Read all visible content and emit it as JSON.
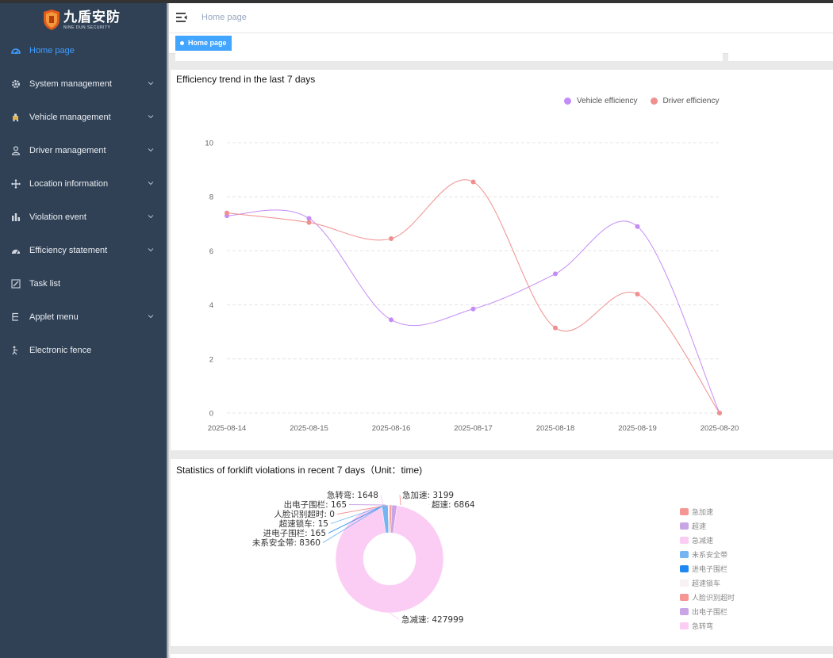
{
  "app": {
    "logo_title": "九盾安防",
    "logo_subtitle": "NINE DUN SECURITY"
  },
  "sidebar": {
    "items": [
      {
        "label": "Home page",
        "icon": "dashboard-icon",
        "active": true,
        "has_children": false
      },
      {
        "label": "System management",
        "icon": "gear-icon",
        "active": false,
        "has_children": true
      },
      {
        "label": "Vehicle management",
        "icon": "vehicle-icon",
        "active": false,
        "has_children": true
      },
      {
        "label": "Driver management",
        "icon": "user-icon",
        "active": false,
        "has_children": true
      },
      {
        "label": "Location information",
        "icon": "move-icon",
        "active": false,
        "has_children": true
      },
      {
        "label": "Violation event",
        "icon": "bar-chart-icon",
        "active": false,
        "has_children": true
      },
      {
        "label": "Efficiency statement",
        "icon": "gauge-icon",
        "active": false,
        "has_children": true
      },
      {
        "label": "Task list",
        "icon": "edit-icon",
        "active": false,
        "has_children": false
      },
      {
        "label": "Applet menu",
        "icon": "tree-icon",
        "active": false,
        "has_children": true
      },
      {
        "label": "Electronic fence",
        "icon": "fence-icon",
        "active": false,
        "has_children": false
      }
    ],
    "bg_color": "#304156",
    "active_color": "#409eff"
  },
  "header": {
    "breadcrumb": "Home page"
  },
  "tags": {
    "active_tag": "Home page"
  },
  "chart_data": [
    {
      "type": "line",
      "title": "Efficiency trend in the last 7 days",
      "categories": [
        "2025-08-14",
        "2025-08-15",
        "2025-08-16",
        "2025-08-17",
        "2025-08-18",
        "2025-08-19",
        "2025-08-20"
      ],
      "series": [
        {
          "name": "Vehicle efficiency",
          "color": "#c58cf7",
          "values": [
            7.3,
            7.2,
            3.45,
            3.85,
            5.15,
            6.9,
            0
          ]
        },
        {
          "name": "Driver efficiency",
          "color": "#f08f8f",
          "values": [
            7.4,
            7.05,
            6.45,
            8.55,
            3.15,
            4.4,
            0
          ]
        }
      ],
      "yticks": [
        "0",
        "2",
        "4",
        "6",
        "8",
        "10"
      ],
      "ylim": [
        0,
        10
      ],
      "grid": true,
      "smooth": true,
      "legend_position": "top-right"
    },
    {
      "type": "pie",
      "title": "Statistics of forklift violations in recent 7 days（Unit：time)",
      "donut": true,
      "slices": [
        {
          "name": "急加速",
          "value": 3199,
          "color": "#f59694"
        },
        {
          "name": "超速",
          "value": 6864,
          "color": "#c9a5e6"
        },
        {
          "name": "急减速",
          "value": 427999,
          "color": "#fccdf4"
        },
        {
          "name": "未系安全带",
          "value": 8360,
          "color": "#75b6f2"
        },
        {
          "name": "进电子围栏",
          "value": 165,
          "color": "#1e88f0"
        },
        {
          "name": "超速锁车",
          "value": 15,
          "color": "#f7f1f4"
        },
        {
          "name": "人脸识别超时",
          "value": 0,
          "color": "#f59694"
        },
        {
          "name": "出电子围栏",
          "value": 165,
          "color": "#c9a5e6"
        },
        {
          "name": "急转弯",
          "value": 1648,
          "color": "#fccdf4"
        }
      ],
      "labels": [
        "急加速: 3199",
        "超速: 6864",
        "急转弯: 1648",
        "出电子围栏: 165",
        "人脸识别超时: 0",
        "超速锁车: 15",
        "进电子围栏: 165",
        "未系安全带: 8360",
        "急减速: 427999"
      ],
      "legend_position": "right"
    }
  ]
}
